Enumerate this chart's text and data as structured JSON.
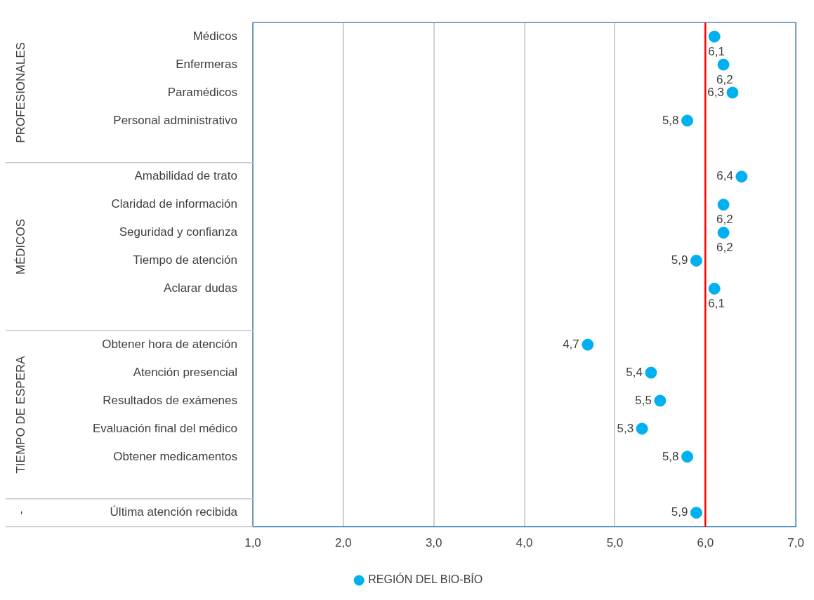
{
  "chart_data": {
    "type": "scatter",
    "orientation": "horizontal",
    "categories": [
      "Médicos",
      "Enfermeras",
      "Paramédicos",
      "Personal administrativo",
      null,
      "Amabilidad de trato",
      "Claridad de información",
      "Seguridad y confianza",
      "Tiempo de atención",
      "Aclarar dudas",
      null,
      "Obtener hora de atención",
      "Atención presencial",
      "Resultados de exámenes",
      "Evaluación final del médico",
      "Obtener medicamentos",
      null,
      "Última atención recibida"
    ],
    "series": [
      {
        "name": "REGIÓN DEL BIO-BÍO",
        "color": "#00b0f0",
        "values": [
          6.1,
          6.2,
          6.3,
          5.8,
          null,
          6.4,
          6.2,
          6.2,
          5.9,
          6.1,
          null,
          4.7,
          5.4,
          5.5,
          5.3,
          5.8,
          null,
          5.9
        ],
        "value_labels": [
          "6,1",
          "6,2",
          "6,3",
          "5,8",
          null,
          "6,4",
          "6,2",
          "6,2",
          "5,9",
          "6,1",
          null,
          "4,7",
          "5,4",
          "5,5",
          "5,3",
          "5,8",
          null,
          "5,9"
        ]
      }
    ],
    "xlim": [
      1,
      7
    ],
    "xticks": [
      {
        "value": 1,
        "label": "1,0"
      },
      {
        "value": 2,
        "label": "2,0"
      },
      {
        "value": 3,
        "label": "3,0"
      },
      {
        "value": 4,
        "label": "4,0"
      },
      {
        "value": 5,
        "label": "5,0"
      },
      {
        "value": 6,
        "label": "6,0"
      },
      {
        "value": 7,
        "label": "7,0"
      }
    ],
    "ref_lines": [
      {
        "axis": "x",
        "value": 6,
        "color": "#ff0000"
      }
    ],
    "annotations": [
      "PROFESIONALES",
      "MÉDICOS",
      "TIEMPO DE ESPERA",
      "-"
    ],
    "grid": "x",
    "legend": "bottom",
    "marker": "circle"
  }
}
